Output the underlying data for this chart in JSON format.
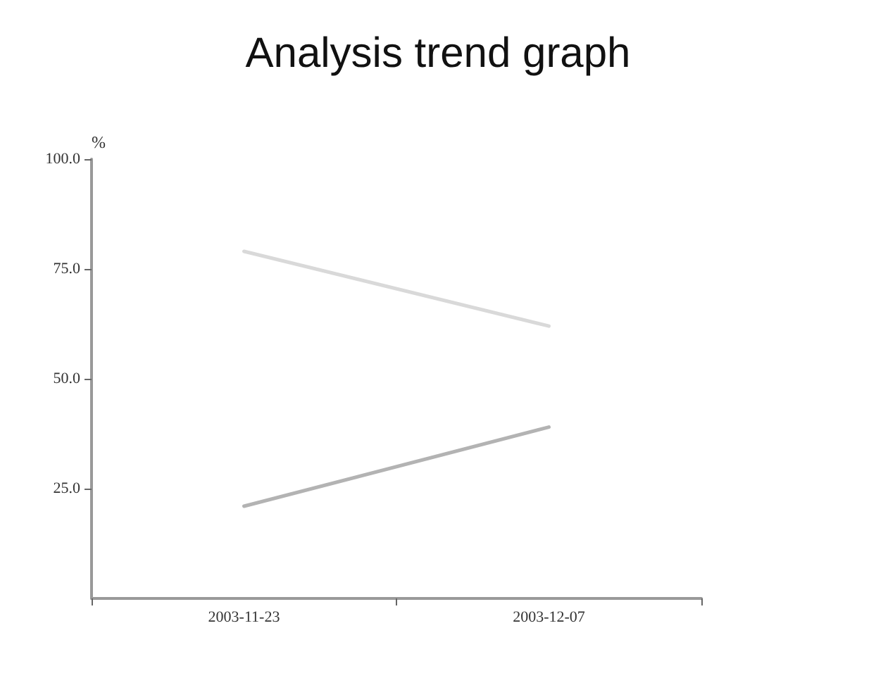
{
  "chart_data": {
    "type": "line",
    "title": "Analysis trend graph",
    "ylabel": "%",
    "categories": [
      "2003-11-23",
      "2003-12-07"
    ],
    "series": [
      {
        "color": "#d9d9d9",
        "values": [
          79,
          62
        ]
      },
      {
        "color": "#b3b3b3",
        "values": [
          21,
          39
        ]
      }
    ],
    "ylim": [
      0,
      100
    ],
    "yticks": [
      {
        "value": 25,
        "label": "25.0"
      },
      {
        "value": 50,
        "label": "50.0"
      },
      {
        "value": 75,
        "label": "75.0"
      },
      {
        "value": 100,
        "label": "100.0"
      }
    ],
    "grid": false,
    "marker": "none",
    "line_style": "solid"
  }
}
